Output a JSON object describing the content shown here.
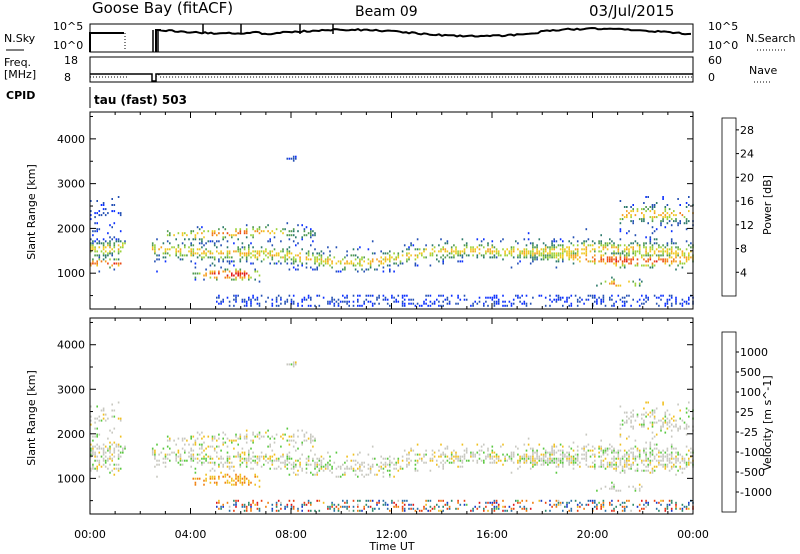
{
  "header": {
    "radar": "Goose Bay (fitACF)",
    "beam": "Beam 09",
    "date": "03/Jul/2015"
  },
  "top_panels": {
    "left_labels": [
      "N.Sky",
      "Freq.",
      "[MHz]",
      "CPID"
    ],
    "right_labels": [
      "N.Search",
      "Nave"
    ],
    "nsky_ticks": [
      "10^5",
      "10^0"
    ],
    "nsearch_ticks": [
      "10^5",
      "10^0"
    ],
    "freq_ticks": [
      "18",
      "8"
    ],
    "nave_ticks": [
      "60",
      "0"
    ],
    "cpid_text": "tau (fast) 503"
  },
  "chart_data": [
    {
      "type": "heatmap",
      "title": "",
      "xlabel": "Time UT",
      "ylabel": "Slant Range [km]",
      "xlim": [
        0,
        24
      ],
      "ylim": [
        200,
        4600
      ],
      "x_tick_labels": [
        "00:00",
        "04:00",
        "08:00",
        "12:00",
        "16:00",
        "20:00",
        "00:00"
      ],
      "y_tick_values": [
        1000,
        2000,
        3000,
        4000
      ],
      "y_tick_labels": [
        "1000",
        "2000",
        "3000",
        "4000"
      ],
      "colorbar": {
        "label": "Power [dB]",
        "tick_labels": [
          "4",
          "8",
          "12",
          "16",
          "20",
          "24",
          "28"
        ],
        "range": [
          0,
          30
        ],
        "colors": [
          "#0b2fff",
          "#2450b4",
          "#2d7a6c",
          "#4f9a50",
          "#9bd23a",
          "#f0c820",
          "#f5a020",
          "#f07818",
          "#ea4a16",
          "#e21a1a"
        ]
      }
    },
    {
      "type": "heatmap",
      "title": "",
      "xlabel": "Time UT",
      "ylabel": "Slant Range [km]",
      "xlim": [
        0,
        24
      ],
      "ylim": [
        200,
        4600
      ],
      "x_tick_labels": [
        "00:00",
        "04:00",
        "08:00",
        "12:00",
        "16:00",
        "20:00",
        "00:00"
      ],
      "y_tick_values": [
        1000,
        2000,
        3000,
        4000
      ],
      "y_tick_labels": [
        "1000",
        "2000",
        "3000",
        "4000"
      ],
      "colorbar": {
        "label": "Velocity [m s^-1]",
        "tick_labels": [
          "1000",
          "500",
          "100",
          "25",
          "-25",
          "-100",
          "-500",
          "-1000"
        ],
        "colors": [
          "#1838c8",
          "#2a70a8",
          "#2e8a6a",
          "#5ac840",
          "#c8c8c0",
          "#f0c020",
          "#f08010",
          "#ea4010",
          "#e01818"
        ]
      }
    }
  ]
}
